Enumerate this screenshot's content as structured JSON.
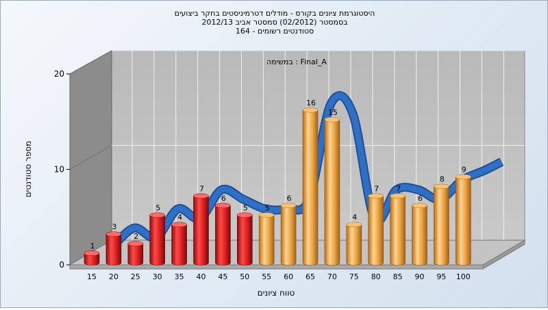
{
  "chart_data": {
    "type": "bar",
    "title_lines": [
      "היסטוגרמת ציונים בקורס - מודלים דטרמיניסטים בחקר ביצועים",
      "בסמסטר  (02/2012)  סמסטר אביב 2012/13",
      "164 - סטודנטים רשומים"
    ],
    "annotation": "במשימה : Final_A",
    "xlabel": "טווח ציונים",
    "ylabel": "מספר סטודנטים",
    "ylim": [
      0,
      20
    ],
    "yticks": [
      0,
      10,
      20
    ],
    "grid": true,
    "categories": [
      "15",
      "20",
      "25",
      "30",
      "35",
      "40",
      "45",
      "50",
      "55",
      "60",
      "65",
      "70",
      "75",
      "80",
      "85",
      "90",
      "95",
      "100"
    ],
    "values": [
      1,
      3,
      2,
      5,
      4,
      7,
      6,
      5,
      5,
      6,
      16,
      15,
      4,
      7,
      7,
      6,
      8,
      9
    ],
    "bar_colors": [
      "#e02020",
      "#e02020",
      "#e02020",
      "#e02020",
      "#e02020",
      "#e02020",
      "#e02020",
      "#e02020",
      "#e8a03a",
      "#e8a03a",
      "#e8a03a",
      "#e8a03a",
      "#e8a03a",
      "#e8a03a",
      "#e8a03a",
      "#e8a03a",
      "#e8a03a",
      "#e8a03a"
    ],
    "trend_color": "#2f6fc4"
  }
}
